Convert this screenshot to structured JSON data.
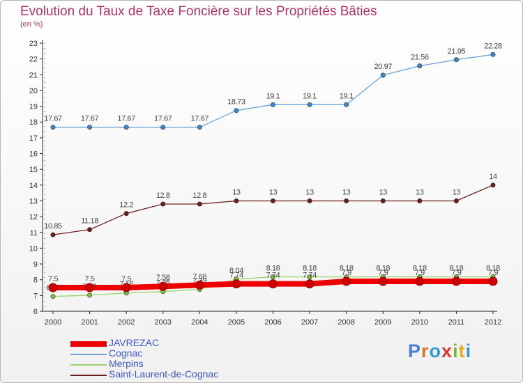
{
  "title": "Evolution du Taux de Taxe Foncière sur les Propriétés Bâties",
  "subtitle": "(en %)",
  "brand": {
    "text": "Proxiti",
    "letters": [
      {
        "ch": "P",
        "color": "#4a7fd4"
      },
      {
        "ch": "r",
        "color": "#e0731f"
      },
      {
        "ch": "o",
        "color": "#2e9dd0"
      },
      {
        "ch": "x",
        "color": "#d83a2f"
      },
      {
        "ch": "i",
        "color": "#7ab83a"
      },
      {
        "ch": "t",
        "color": "#e0b020"
      },
      {
        "ch": "i",
        "color": "#2e9dd0"
      }
    ]
  },
  "chart_data": {
    "type": "line",
    "title": "Evolution du Taux de Taxe Foncière sur les Propriétés Bâties",
    "ylabel": "(en %)",
    "xlabel": "",
    "x": [
      "2000",
      "2001",
      "2002",
      "2003",
      "2004",
      "2005",
      "2006",
      "2007",
      "2008",
      "2009",
      "2010",
      "2011",
      "2012"
    ],
    "ylim": [
      6,
      23
    ],
    "yticks": [
      "6",
      "7",
      "8",
      "9",
      "10",
      "11",
      "12",
      "13",
      "14",
      "15",
      "16",
      "17",
      "18",
      "19",
      "20",
      "21",
      "22",
      "23"
    ],
    "series": [
      {
        "name": "Saint-Laurent-de-Cognac",
        "color": "#6b1d1d",
        "marker": "#6b1d1d",
        "width": 1.3,
        "values": [
          10.85,
          11.18,
          12.2,
          12.8,
          12.8,
          13,
          13,
          13,
          13,
          13,
          13,
          13,
          14
        ],
        "labels": [
          "10.85",
          "11.18",
          "12.2",
          "12.8",
          "12.8",
          "13",
          "13",
          "13",
          "13",
          "13",
          "13",
          "13",
          "14"
        ]
      },
      {
        "name": "Cognac",
        "color": "#6ba4d8",
        "marker": "#3d86c6",
        "width": 1.3,
        "values": [
          17.67,
          17.67,
          17.67,
          17.67,
          17.67,
          18.73,
          19.1,
          19.1,
          19.1,
          20.97,
          21.56,
          21.95,
          22.28
        ],
        "labels": [
          "17.67",
          "17.67",
          "17.67",
          "17.67",
          "17.67",
          "18.73",
          "19.1",
          "19.1",
          "19.1",
          "20.97",
          "21.56",
          "21.95",
          "22.28"
        ]
      },
      {
        "name": "Merpins",
        "color": "#9ed26a",
        "marker": "#7cc043",
        "width": 1.3,
        "values": [
          6.94,
          7.02,
          7.16,
          7.25,
          7.39,
          8.04,
          8.18,
          8.18,
          8.18,
          8.18,
          8.18,
          8.18,
          8.18
        ],
        "labels": [
          "6.94",
          "7.02",
          "7.16",
          "7.25",
          "7.39",
          "8.04",
          "8.18",
          "8.18",
          "8.18",
          "8.18",
          "8.18",
          "8.18",
          "8.18"
        ]
      },
      {
        "name": "JAVREZAC",
        "color": "#ee0000",
        "marker": "#cc0000",
        "width": 8,
        "values": [
          7.5,
          7.5,
          7.5,
          7.58,
          7.66,
          7.74,
          7.74,
          7.74,
          7.9,
          7.9,
          7.9,
          7.9,
          7.9
        ],
        "labels": [
          "7.5",
          "7.5",
          "7.5",
          "7.58",
          "7.66",
          "7.74",
          "7.74",
          "7.74",
          "7.9",
          "7.9",
          "7.9",
          "7.9",
          "7.9"
        ]
      }
    ],
    "legend": [
      "JAVREZAC",
      "Cognac",
      "Merpins",
      "Saint-Laurent-de-Cognac"
    ],
    "legend_position": "bottom-left",
    "grid": false
  }
}
